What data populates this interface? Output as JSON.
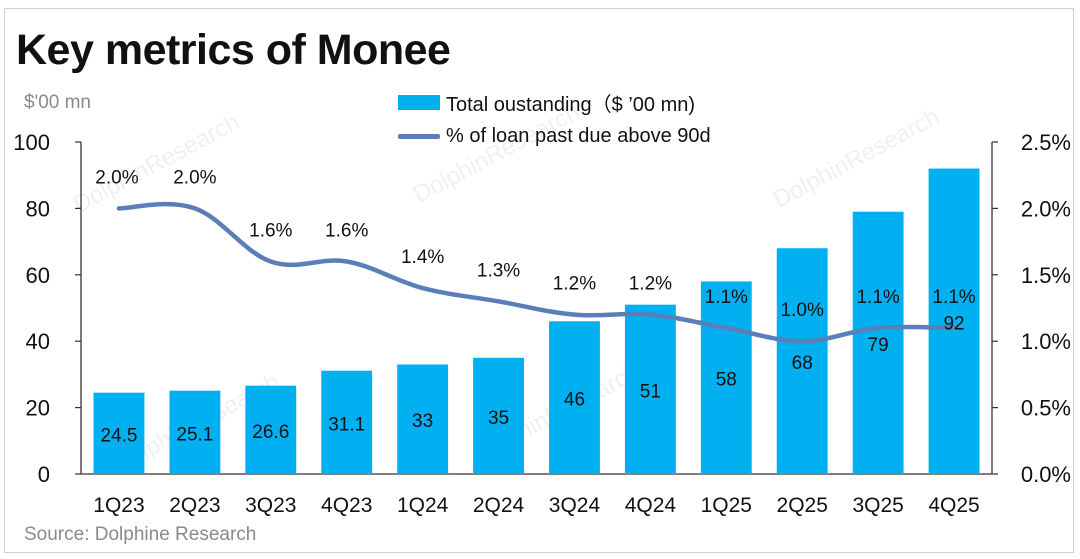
{
  "title": "Key metrics of Monee",
  "unit_label": "$'00 mn",
  "source": "Source:  Dolphine Research",
  "watermark": "DolphinResearch",
  "colors": {
    "bar": "#00b0f0",
    "line": "#5a7fb8",
    "axis": "#333333"
  },
  "legend": {
    "bar_label": "Total oustanding（$  ’00 mn)",
    "line_label": "% of loan past due above 90d"
  },
  "chart_data": {
    "type": "bar",
    "categories": [
      "1Q23",
      "2Q23",
      "3Q23",
      "4Q23",
      "1Q24",
      "2Q24",
      "3Q24",
      "4Q24",
      "1Q25",
      "2Q25",
      "3Q25",
      "4Q25"
    ],
    "series": [
      {
        "name": "Total oustanding（$  ’00 mn)",
        "type": "bar",
        "axis": "left",
        "values": [
          24.5,
          25.1,
          26.6,
          31.1,
          33,
          35,
          46,
          51,
          58,
          68,
          79,
          92
        ],
        "labels": [
          "24.5",
          "25.1",
          "26.6",
          "31.1",
          "33",
          "35",
          "46",
          "51",
          "58",
          "68",
          "79",
          "92"
        ]
      },
      {
        "name": "% of loan past due above 90d",
        "type": "line",
        "axis": "right",
        "values": [
          2.0,
          2.0,
          1.6,
          1.6,
          1.4,
          1.3,
          1.2,
          1.2,
          1.1,
          1.0,
          1.1,
          1.1
        ],
        "labels": [
          "2.0%",
          "2.0%",
          "1.6%",
          "1.6%",
          "1.4%",
          "1.3%",
          "1.2%",
          "1.2%",
          "1.1%",
          "1.0%",
          "1.1%",
          "1.1%"
        ]
      }
    ],
    "left_axis": {
      "min": 0,
      "max": 100,
      "ticks": [
        0,
        20,
        40,
        60,
        80,
        100
      ]
    },
    "right_axis": {
      "min": 0,
      "max": 2.5,
      "ticks": [
        "0.0%",
        "0.5%",
        "1.0%",
        "1.5%",
        "2.0%",
        "2.5%"
      ]
    },
    "legend_position": "top",
    "grid": false
  }
}
